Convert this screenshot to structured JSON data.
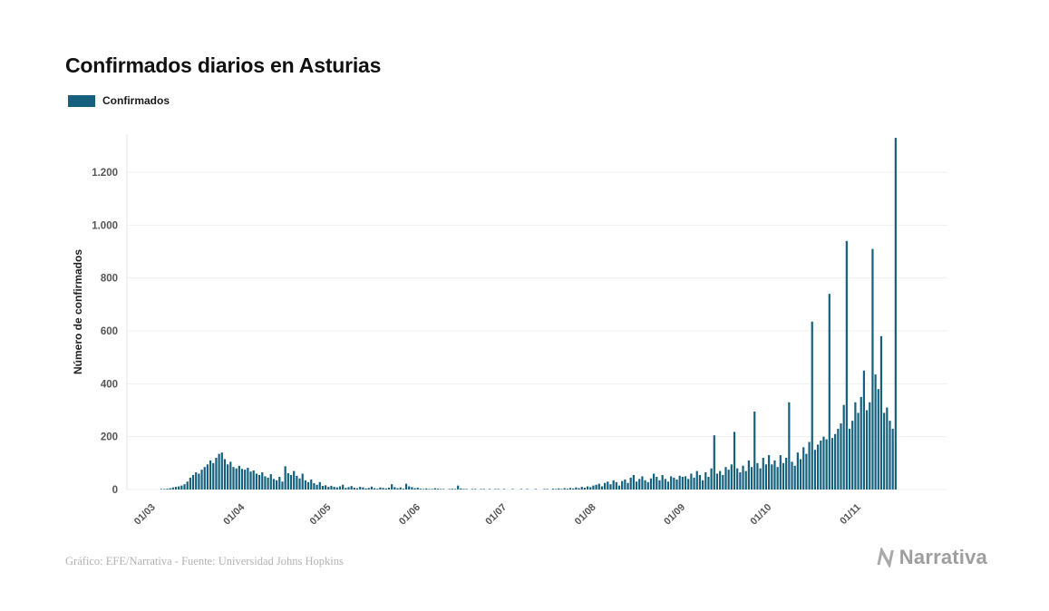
{
  "header": {
    "title": "Confirmados diarios en Asturias"
  },
  "legend": {
    "label": "Confirmados",
    "color": "#15607d"
  },
  "footer": {
    "credit": "Gráfico: EFE/Narrativa - Fuente: Universidad Johns Hopkins",
    "brand": "Narrativa"
  },
  "chart_data": {
    "type": "bar",
    "title": "Confirmados diarios en Asturias",
    "series_name": "Confirmados",
    "xlabel": "",
    "ylabel": "Número de confirmados",
    "bar_color": "#15607d",
    "grid": true,
    "legend_position": "top-left",
    "ylim": [
      0,
      1400
    ],
    "yticks": [
      0,
      200,
      400,
      600,
      800,
      1000,
      1200
    ],
    "ytick_labels": [
      "0",
      "200",
      "400",
      "600",
      "800",
      "1.000",
      "1.200"
    ],
    "xtick_labels": [
      "01/03",
      "01/04",
      "01/05",
      "01/06",
      "01/07",
      "01/08",
      "01/09",
      "01/10",
      "01/11"
    ],
    "months": [
      {
        "label": "01/03",
        "values": [
          0,
          0,
          1,
          2,
          3,
          5,
          8,
          10,
          12,
          15,
          20,
          30,
          45,
          55,
          65,
          60,
          75,
          85,
          95,
          110,
          100,
          120,
          135,
          140,
          115,
          95,
          105,
          85,
          80,
          90,
          78
        ]
      },
      {
        "label": "01/04",
        "values": [
          75,
          82,
          68,
          72,
          60,
          55,
          65,
          50,
          45,
          58,
          40,
          35,
          48,
          30,
          88,
          62,
          55,
          70,
          52,
          42,
          60,
          35,
          28,
          38,
          24,
          18,
          28,
          14,
          16,
          10
        ]
      },
      {
        "label": "01/05",
        "values": [
          14,
          10,
          8,
          12,
          18,
          6,
          9,
          13,
          7,
          5,
          10,
          8,
          4,
          6,
          11,
          5,
          3,
          8,
          6,
          4,
          7,
          20,
          9,
          5,
          8,
          3,
          22,
          12,
          9,
          5,
          7
        ]
      },
      {
        "label": "01/06",
        "values": [
          3,
          2,
          4,
          1,
          2,
          5,
          3,
          1,
          2,
          0,
          1,
          3,
          2,
          15,
          4,
          2,
          1,
          0,
          2,
          1,
          0,
          1,
          2,
          0,
          1,
          0,
          2,
          1,
          0,
          1
        ]
      },
      {
        "label": "01/07",
        "values": [
          0,
          0,
          1,
          0,
          0,
          2,
          0,
          1,
          0,
          0,
          1,
          0,
          0,
          2,
          1,
          0,
          3,
          2,
          4,
          2,
          5,
          3,
          6,
          4,
          8,
          5,
          10,
          7,
          12,
          9,
          15
        ]
      },
      {
        "label": "01/08",
        "values": [
          18,
          22,
          12,
          25,
          30,
          20,
          35,
          28,
          15,
          32,
          38,
          25,
          45,
          55,
          30,
          40,
          50,
          35,
          28,
          42,
          60,
          48,
          35,
          55,
          40,
          30,
          50,
          45,
          38,
          52,
          48
        ]
      },
      {
        "label": "01/09",
        "values": [
          50,
          40,
          60,
          45,
          70,
          55,
          35,
          65,
          48,
          80,
          205,
          60,
          70,
          55,
          85,
          75,
          95,
          218,
          80,
          65,
          90,
          70,
          110,
          85,
          295,
          100,
          80,
          120,
          95,
          130
        ]
      },
      {
        "label": "01/10",
        "values": [
          95,
          110,
          85,
          130,
          100,
          120,
          330,
          105,
          90,
          140,
          115,
          160,
          135,
          180,
          635,
          150,
          170,
          185,
          200,
          190,
          740,
          195,
          210,
          230,
          250,
          320,
          940,
          230,
          260,
          330,
          290
        ]
      },
      {
        "label": "01/11",
        "values": [
          350,
          450,
          300,
          330,
          910,
          435,
          380,
          580,
          290,
          310,
          260,
          230,
          1330
        ]
      }
    ]
  }
}
